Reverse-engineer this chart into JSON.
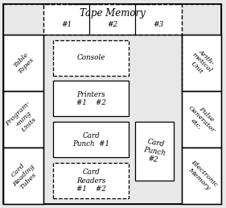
{
  "title": "Tape Memory",
  "tape_labels": [
    "#1",
    "#2",
    "#3"
  ],
  "left_cells": [
    [
      "Table",
      "Tapes"
    ],
    [
      "Program-",
      "-ming",
      "Units"
    ],
    [
      "Card",
      "Reading",
      "Tubes"
    ]
  ],
  "right_cells": [
    [
      "Arith-",
      "metical",
      "Unit"
    ],
    [
      "Pulse",
      "Generator",
      "etc."
    ],
    [
      "Electronic",
      "Memory"
    ]
  ],
  "center_boxes": [
    {
      "lines": [
        "Console"
      ],
      "dashed": true
    },
    {
      "lines": [
        "Printers",
        "#1    #2"
      ],
      "dashed": false
    },
    {
      "lines": [
        "Card",
        "Punch  #1"
      ],
      "dashed": false
    },
    {
      "lines": [
        "Card",
        "Readers",
        "#1    #2"
      ],
      "dashed": true
    }
  ],
  "card_punch2": [
    "Card",
    "Punch",
    "#2"
  ],
  "bg_color": "#e8e8e8",
  "line_color": "#000000"
}
